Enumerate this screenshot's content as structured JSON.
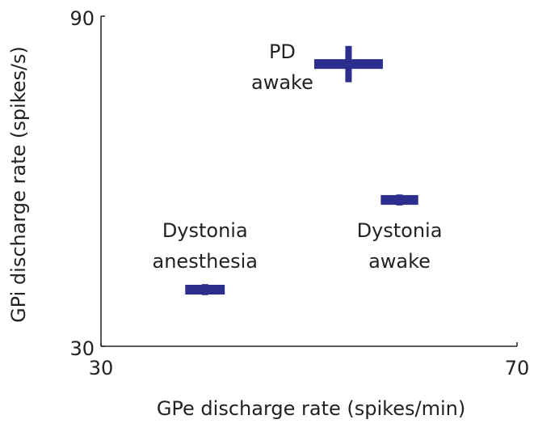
{
  "chart_data": {
    "type": "scatter",
    "x_label": "GPe discharge rate (spikes/min)",
    "y_label": "GPi discharge rate (spikes/s)",
    "xlim": [
      30,
      70
    ],
    "ylim": [
      30,
      90
    ],
    "xticks": [
      30,
      70
    ],
    "yticks": [
      30,
      90
    ],
    "color": "#2b2e8c",
    "labels": [
      [
        "PD",
        "awake"
      ],
      [
        "Dystonia",
        "awake"
      ],
      [
        "Dystonia",
        "anesthesia"
      ]
    ],
    "x": [
      53.8,
      58.7,
      40.0
    ],
    "values": [
      81.3,
      56.6,
      40.3
    ],
    "xerr": [
      3.3,
      1.8,
      1.9
    ],
    "yerr": [
      3.3,
      1.0,
      1.0
    ]
  }
}
